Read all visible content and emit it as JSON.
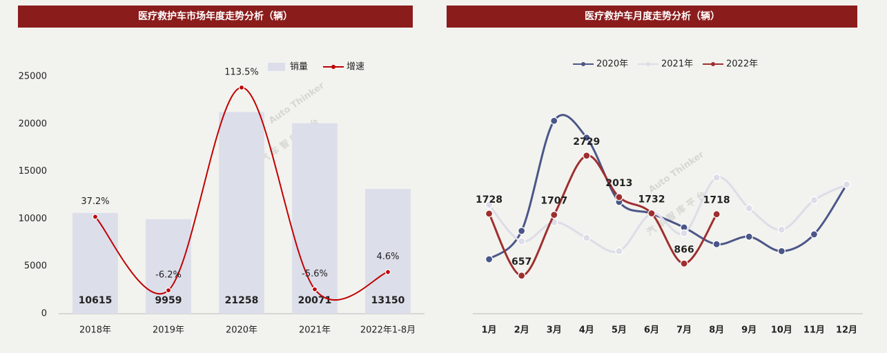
{
  "watermark": [
    "Auto Thinker",
    "汽 车 智 库 平 台"
  ],
  "chart_data": [
    {
      "type": "bar",
      "title": "医疗救护车市场年度走势分析（辆）",
      "categories": [
        "2018年",
        "2019年",
        "2020年",
        "2021年",
        "2022年1-8月"
      ],
      "series": [
        {
          "name": "销量",
          "type": "bar",
          "color": "#dcdeea",
          "values": [
            10615,
            9959,
            21258,
            20071,
            13150
          ]
        },
        {
          "name": "增速",
          "type": "line",
          "axis": "y2",
          "color": "#c00000",
          "smooth": true,
          "values": [
            37.2,
            -6.2,
            113.5,
            -5.6,
            4.6
          ],
          "value_labels": [
            "37.2%",
            "-6.2%",
            "113.5%",
            "-5.6%",
            "4.6%"
          ]
        }
      ],
      "ylim": [
        0,
        25000
      ],
      "yticks": [
        0,
        5000,
        10000,
        15000,
        20000,
        25000
      ],
      "y2lim": [
        -20,
        120
      ],
      "grid": false,
      "legend": "top-right"
    },
    {
      "type": "line",
      "title": "医疗救护车月度走势分析（辆）",
      "categories": [
        "1月",
        "2月",
        "3月",
        "4月",
        "5月",
        "6月",
        "7月",
        "8月",
        "9月",
        "10月",
        "11月",
        "12月"
      ],
      "series": [
        {
          "name": "2020年",
          "color": "#4a5688",
          "smooth": true,
          "labels": false,
          "values": [
            940,
            1430,
            3330,
            3040,
            1930,
            1730,
            1490,
            1200,
            1330,
            1080,
            1370,
            2230
          ]
        },
        {
          "name": "2021年",
          "color": "#dcdde8",
          "smooth": true,
          "labels": false,
          "values": [
            1880,
            1250,
            1580,
            1310,
            1080,
            1730,
            1390,
            2350,
            1820,
            1450,
            1960,
            2230
          ]
        },
        {
          "name": "2022年",
          "color": "#9e2f2f",
          "smooth": true,
          "labels": true,
          "values": [
            1728,
            657,
            1707,
            2729,
            2013,
            1732,
            866,
            1718,
            null,
            null,
            null,
            null
          ]
        }
      ],
      "ylim": [
        0,
        4000
      ],
      "grid": false,
      "legend": "top"
    }
  ]
}
